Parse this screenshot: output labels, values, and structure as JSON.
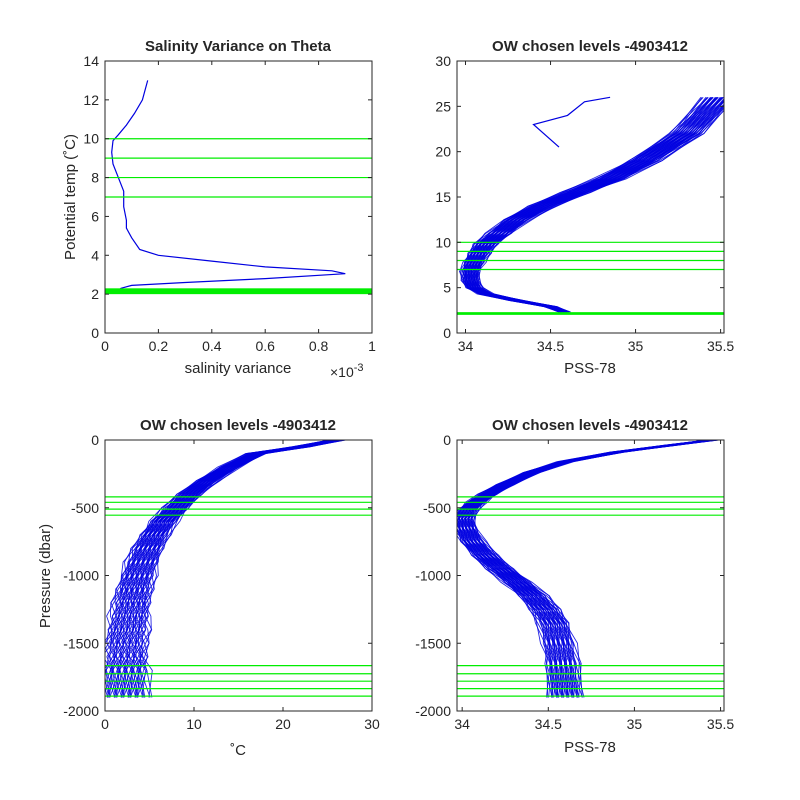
{
  "colors": {
    "data_line": "#0000e0",
    "level_line": "#00ee00",
    "axis": "#262626",
    "background": "#ffffff"
  },
  "chart_data": [
    {
      "type": "line",
      "title": "Salinity Variance on Theta",
      "xlabel": "salinity variance",
      "ylabel": "Potential temp (˚C)",
      "x_exponent_label": "×10",
      "x_exponent_power": "-3",
      "xlim": [
        0,
        1
      ],
      "ylim": [
        0,
        14
      ],
      "x_ticks": [
        0,
        0.2,
        0.4,
        0.6,
        0.8,
        1
      ],
      "x_tick_labels": [
        "0",
        "0.2",
        "0.4",
        "0.6",
        "0.8",
        "1"
      ],
      "y_ticks": [
        0,
        2,
        4,
        6,
        8,
        10,
        12,
        14
      ],
      "y_tick_labels": [
        "0",
        "2",
        "4",
        "6",
        "8",
        "10",
        "12",
        "14"
      ],
      "grid": false,
      "series": [
        {
          "x": [
            0.16,
            0.14,
            0.11,
            0.08,
            0.05,
            0.03,
            0.025,
            0.03,
            0.07,
            0.07,
            0.08,
            0.08,
            0.1,
            0.13,
            0.2,
            0.4,
            0.6,
            0.85,
            0.9,
            0.6,
            0.3,
            0.1,
            0.06,
            0.05,
            0.04
          ],
          "y": [
            13,
            12,
            11.3,
            10.7,
            10.2,
            9.9,
            9.3,
            8.7,
            7.3,
            6.5,
            5.8,
            5.4,
            4.9,
            4.3,
            4.0,
            3.7,
            3.4,
            3.2,
            3.05,
            2.8,
            2.6,
            2.45,
            2.3,
            2.2,
            2.1
          ]
        }
      ],
      "horizontal_levels": [
        10.0,
        9.0,
        8.0,
        7.0
      ],
      "level_band": [
        2.0,
        2.3
      ]
    },
    {
      "type": "line",
      "title": "OW chosen levels -4903412",
      "xlabel": "PSS-78",
      "ylabel": "",
      "xlim": [
        33.95,
        35.52
      ],
      "ylim": [
        0,
        30
      ],
      "x_ticks": [
        34,
        34.5,
        35,
        35.5
      ],
      "x_tick_labels": [
        "34",
        "34.5",
        "35",
        "35.5"
      ],
      "y_ticks": [
        0,
        5,
        10,
        15,
        20,
        25,
        30
      ],
      "y_tick_labels": [
        "0",
        "5",
        "10",
        "15",
        "20",
        "25",
        "30"
      ],
      "grid": false,
      "profiles": {
        "count": 45,
        "salinity_spread": 0.03
      },
      "series": [
        {
          "x": [
            34.58,
            34.5,
            34.3,
            34.12,
            34.05,
            34.03,
            34.03,
            34.05,
            34.08,
            34.12,
            34.2,
            34.3,
            34.45,
            34.65,
            34.85,
            35.05,
            35.3,
            35.5
          ],
          "y": [
            2.3,
            2.9,
            3.6,
            4.3,
            5.0,
            5.8,
            6.8,
            7.8,
            8.8,
            9.8,
            11.0,
            12.5,
            14.0,
            15.5,
            17.0,
            19.0,
            22.0,
            26.0
          ]
        },
        {
          "x": [
            34.55,
            34.4,
            34.6,
            34.7,
            34.85
          ],
          "y": [
            20.5,
            23.0,
            24.0,
            25.5,
            26.0
          ]
        }
      ],
      "horizontal_levels": [
        10.0,
        9.0,
        8.0,
        7.0
      ],
      "level_band": [
        2.0,
        2.3
      ]
    },
    {
      "type": "line",
      "title": "OW chosen levels -4903412",
      "xlabel": "˚C",
      "ylabel": "Pressure (dbar)",
      "xlim": [
        0,
        30
      ],
      "ylim": [
        -2000,
        0
      ],
      "x_ticks": [
        0,
        10,
        20,
        30
      ],
      "x_tick_labels": [
        "0",
        "10",
        "20",
        "30"
      ],
      "y_ticks": [
        0,
        -500,
        -1000,
        -1500,
        -2000
      ],
      "y_tick_labels": [
        "0",
        "-500",
        "-1000",
        "-1500",
        "-2000"
      ],
      "grid": false,
      "profiles": {
        "count": 45,
        "temperature_spread": 0.8
      },
      "series": [
        {
          "x": [
            26.0,
            22.0,
            17.0,
            14.0,
            11.5,
            9.5,
            8.0,
            6.6,
            5.6,
            4.8,
            4.2,
            3.7,
            3.3,
            3.0,
            2.8,
            2.6,
            2.4,
            2.35,
            2.3,
            2.2
          ],
          "y": [
            0,
            -50,
            -100,
            -200,
            -300,
            -400,
            -500,
            -600,
            -700,
            -800,
            -900,
            -1000,
            -1100,
            -1200,
            -1300,
            -1400,
            -1500,
            -1600,
            -1700,
            -1900
          ]
        }
      ],
      "horizontal_levels": [
        -420,
        -460,
        -510,
        -555,
        -1665,
        -1725,
        -1780,
        -1835,
        -1890
      ]
    },
    {
      "type": "line",
      "title": "OW chosen levels -4903412",
      "xlabel": "PSS-78",
      "ylabel": "",
      "xlim": [
        33.97,
        35.52
      ],
      "ylim": [
        -2000,
        0
      ],
      "x_ticks": [
        34,
        34.5,
        35,
        35.5
      ],
      "x_tick_labels": [
        "34",
        "34.5",
        "35",
        "35.5"
      ],
      "y_ticks": [
        0,
        -500,
        -1000,
        -1500,
        -2000
      ],
      "y_tick_labels": [
        "0",
        "-500",
        "-1000",
        "-1500",
        "-2000"
      ],
      "grid": false,
      "profiles": {
        "count": 45,
        "salinity_spread": 0.03
      },
      "series": [
        {
          "x": [
            35.45,
            35.2,
            34.9,
            34.6,
            34.4,
            34.25,
            34.15,
            34.08,
            34.03,
            34.01,
            34.02,
            34.06,
            34.13,
            34.22,
            34.32,
            34.41,
            34.48,
            34.53,
            34.56,
            34.58,
            34.6
          ],
          "y": [
            0,
            -40,
            -90,
            -160,
            -240,
            -330,
            -400,
            -460,
            -520,
            -580,
            -650,
            -750,
            -850,
            -950,
            -1050,
            -1150,
            -1250,
            -1350,
            -1500,
            -1650,
            -1900
          ]
        }
      ],
      "horizontal_levels": [
        -420,
        -460,
        -510,
        -555,
        -1665,
        -1725,
        -1780,
        -1835,
        -1890
      ]
    }
  ]
}
